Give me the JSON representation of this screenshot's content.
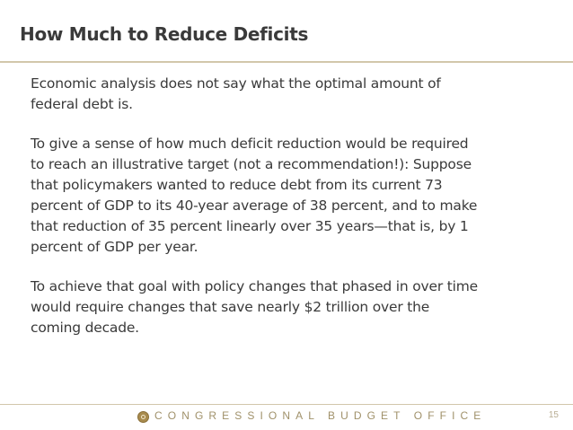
{
  "slide": {
    "title": "How Much to Reduce Deficits",
    "paragraphs": [
      [
        "Economic analysis does not say what the optimal amount of",
        "federal debt is."
      ],
      [
        "To give a sense of how much deficit reduction would be required",
        "to reach an illustrative target (not a recommendation!): Suppose",
        "that policymakers wanted to reduce debt from its current 73",
        "percent of GDP to its 40-year average of 38 percent, and to make",
        "that reduction of 35 percent linearly over 35 years—that is, by 1",
        "percent of GDP per year."
      ],
      [
        "To achieve that goal with policy changes that phased in over time",
        "would require changes that save nearly $2 trillion over the",
        "coming decade."
      ]
    ]
  },
  "footer": {
    "logo_icon": "cbo-seal-icon",
    "organization": "CONGRESSIONAL BUDGET OFFICE",
    "page_number": "15"
  }
}
